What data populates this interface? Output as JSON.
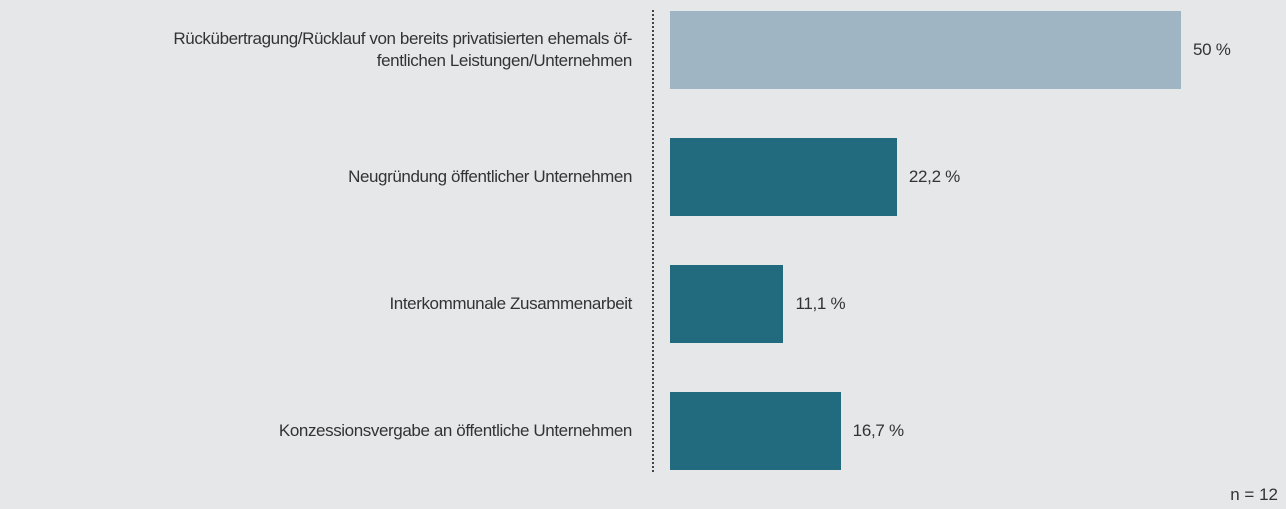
{
  "chart_data": {
    "type": "bar",
    "orientation": "horizontal",
    "categories": [
      "Rückübertragung/Rücklauf von bereits privatisierten ehemals öf-\nfentlichen  Leistungen/Unternehmen",
      "Neugründung öffentlicher Unternehmen",
      "Interkommunale Zusammenarbeit",
      "Konzessionsvergabe an öffentliche Unternehmen"
    ],
    "values": [
      50,
      22.2,
      11.1,
      16.7
    ],
    "value_labels": [
      "50 %",
      "22,2 %",
      "11,1 %",
      "16,7 %"
    ],
    "colors": [
      "#9fb5c3",
      "#226b7f",
      "#226b7f",
      "#226b7f"
    ],
    "xlim": [
      0,
      50
    ],
    "annotation": "n = 12"
  }
}
